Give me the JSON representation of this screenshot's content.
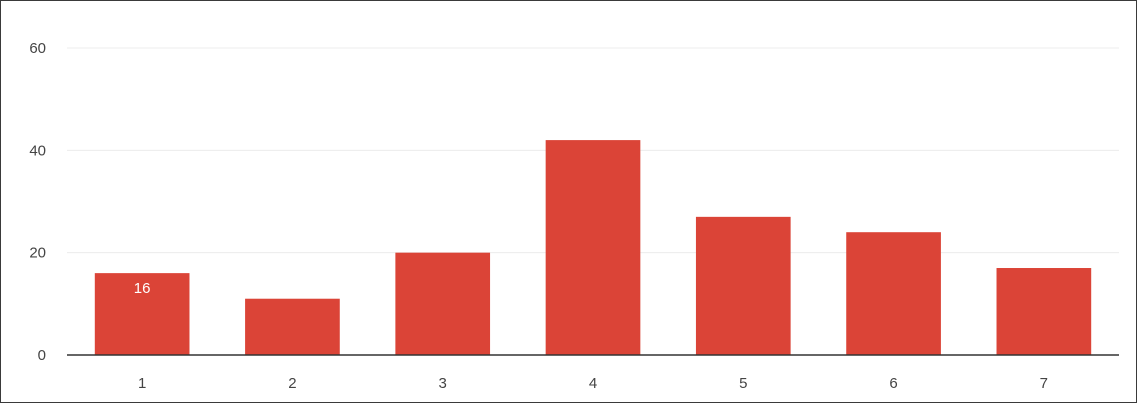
{
  "chart_data": {
    "type": "bar",
    "categories": [
      "1",
      "2",
      "3",
      "4",
      "5",
      "6",
      "7"
    ],
    "values": [
      16,
      11,
      20,
      42,
      27,
      24,
      17
    ],
    "data_labels": [
      "16",
      "",
      "",
      "",
      "",
      "",
      ""
    ],
    "ylim": [
      0,
      60
    ],
    "yticks": [
      0,
      20,
      40,
      60
    ],
    "ytick_labels": [
      "0",
      "20",
      "40",
      "60"
    ],
    "grid": true,
    "legend": "none",
    "colors": {
      "bar": "#db4437",
      "grid": "#ececec",
      "axis": "#333333",
      "label_text": "#444444",
      "data_label_text": "#ffffff"
    }
  }
}
